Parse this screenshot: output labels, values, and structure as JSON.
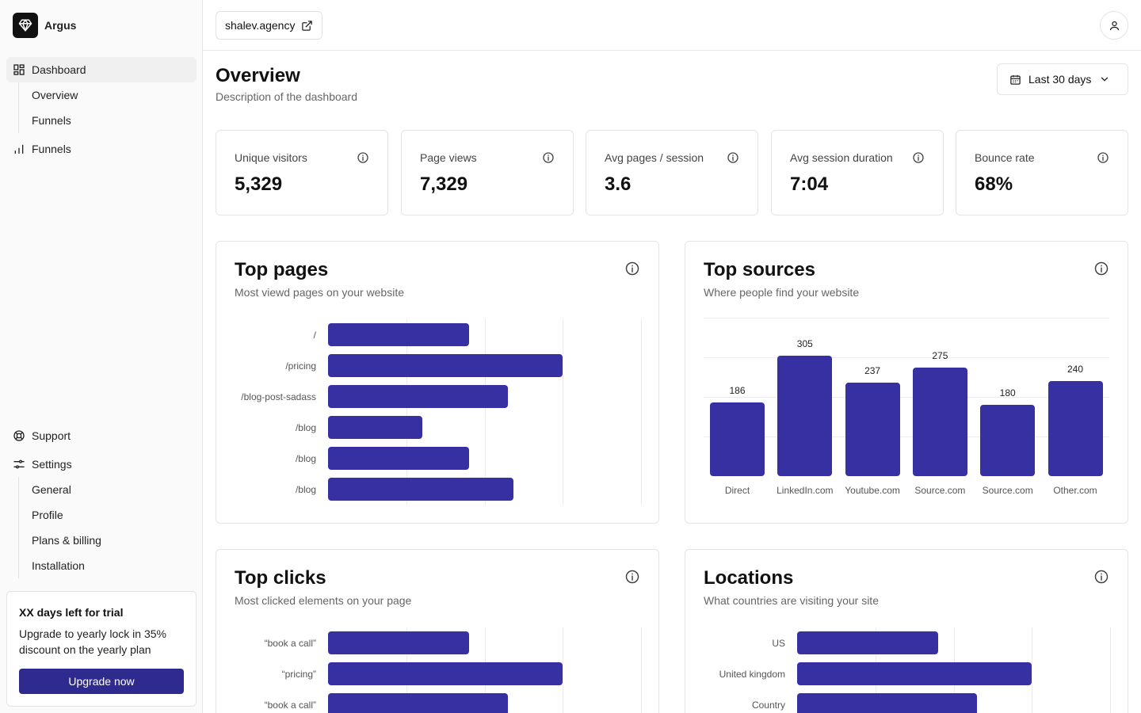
{
  "app": {
    "name": "Argus"
  },
  "sidebar": {
    "nav": [
      {
        "label": "Dashboard",
        "active": true
      },
      {
        "label": "Funnels"
      }
    ],
    "dashboard_children": [
      "Overview",
      "Funnels"
    ],
    "support_label": "Support",
    "settings_label": "Settings",
    "settings_children": [
      "General",
      "Profile",
      "Plans & billing",
      "Installation"
    ],
    "trial": {
      "title": "XX days left for trial",
      "text": "Upgrade to yearly lock in 35% discount on the yearly plan",
      "button": "Upgrade now"
    }
  },
  "topbar": {
    "site": "shalev.agency"
  },
  "page": {
    "title": "Overview",
    "description": "Description of the dashboard",
    "range": "Last 30 days"
  },
  "stats": [
    {
      "label": "Unique visitors",
      "value": "5,329"
    },
    {
      "label": "Page views",
      "value": "7,329"
    },
    {
      "label": "Avg pages / session",
      "value": "3.6"
    },
    {
      "label": "Avg session duration",
      "value": "7:04"
    },
    {
      "label": "Bounce rate",
      "value": "68%"
    }
  ],
  "cards": {
    "top_pages": {
      "title": "Top pages",
      "subtitle": "Most viewd pages on your website"
    },
    "top_sources": {
      "title": "Top sources",
      "subtitle": "Where people find your website"
    },
    "top_clicks": {
      "title": "Top clicks",
      "subtitle": "Most clicked elements on your page"
    },
    "locations": {
      "title": "Locations",
      "subtitle": "What countries are visiting your site"
    }
  },
  "chart_data": [
    {
      "id": "top_pages",
      "type": "bar",
      "orientation": "horizontal",
      "categories": [
        "/",
        "/pricing",
        "/blog-post-sadass",
        "/blog",
        "/blog",
        "/blog"
      ],
      "values": [
        180,
        300,
        230,
        120,
        180,
        237
      ],
      "xlim": [
        0,
        400
      ]
    },
    {
      "id": "top_sources",
      "type": "bar",
      "categories": [
        "Direct",
        "LinkedIn.com",
        "Youtube.com",
        "Source.com",
        "Source.com",
        "Other.com"
      ],
      "values": [
        186,
        305,
        237,
        275,
        180,
        240
      ],
      "ylim": [
        0,
        400
      ]
    },
    {
      "id": "top_clicks",
      "type": "bar",
      "orientation": "horizontal",
      "categories": [
        "“book a call”",
        "“pricing”",
        "“book a call”"
      ],
      "values": [
        180,
        300,
        230
      ],
      "xlim": [
        0,
        400
      ]
    },
    {
      "id": "locations",
      "type": "bar",
      "orientation": "horizontal",
      "categories": [
        "US",
        "United kingdom",
        "Country"
      ],
      "values": [
        180,
        300,
        230
      ],
      "xlim": [
        0,
        400
      ]
    }
  ]
}
